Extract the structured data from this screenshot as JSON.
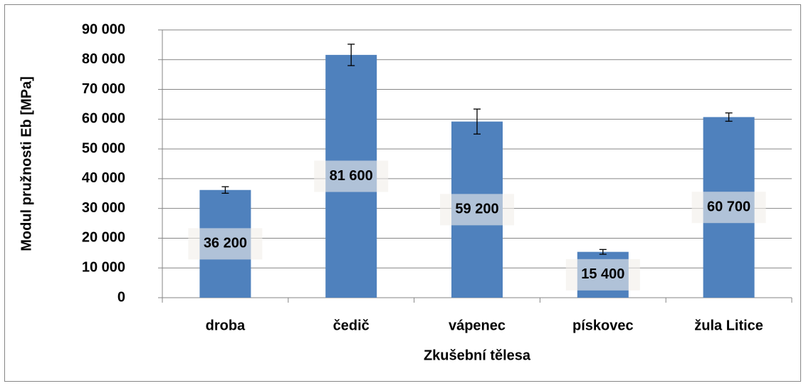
{
  "chart_data": {
    "type": "bar",
    "x_label": "Zkušební tělesa",
    "y_label": "Modul pružnosti Eb  [MPa]",
    "categories": [
      "droba",
      "čedič",
      "vápenec",
      "pískovec",
      "žula Litice"
    ],
    "values": [
      36200,
      81600,
      59200,
      15400,
      60700
    ],
    "value_labels": [
      "36 200",
      "81 600",
      "59 200",
      "15 400",
      "60 700"
    ],
    "errors": [
      1100,
      3600,
      4200,
      800,
      1400
    ],
    "color": "#4f81bd",
    "ylim": [
      0,
      90000
    ],
    "yticks": [
      {
        "value": 0,
        "label": "0"
      },
      {
        "value": 10000,
        "label": "10 000"
      },
      {
        "value": 20000,
        "label": "20 000"
      },
      {
        "value": 30000,
        "label": "30 000"
      },
      {
        "value": 40000,
        "label": "40 000"
      },
      {
        "value": 50000,
        "label": "50 000"
      },
      {
        "value": 60000,
        "label": "60 000"
      },
      {
        "value": 70000,
        "label": "70 000"
      },
      {
        "value": 80000,
        "label": "80 000"
      },
      {
        "value": 90000,
        "label": "90 000"
      }
    ],
    "grid": true
  }
}
